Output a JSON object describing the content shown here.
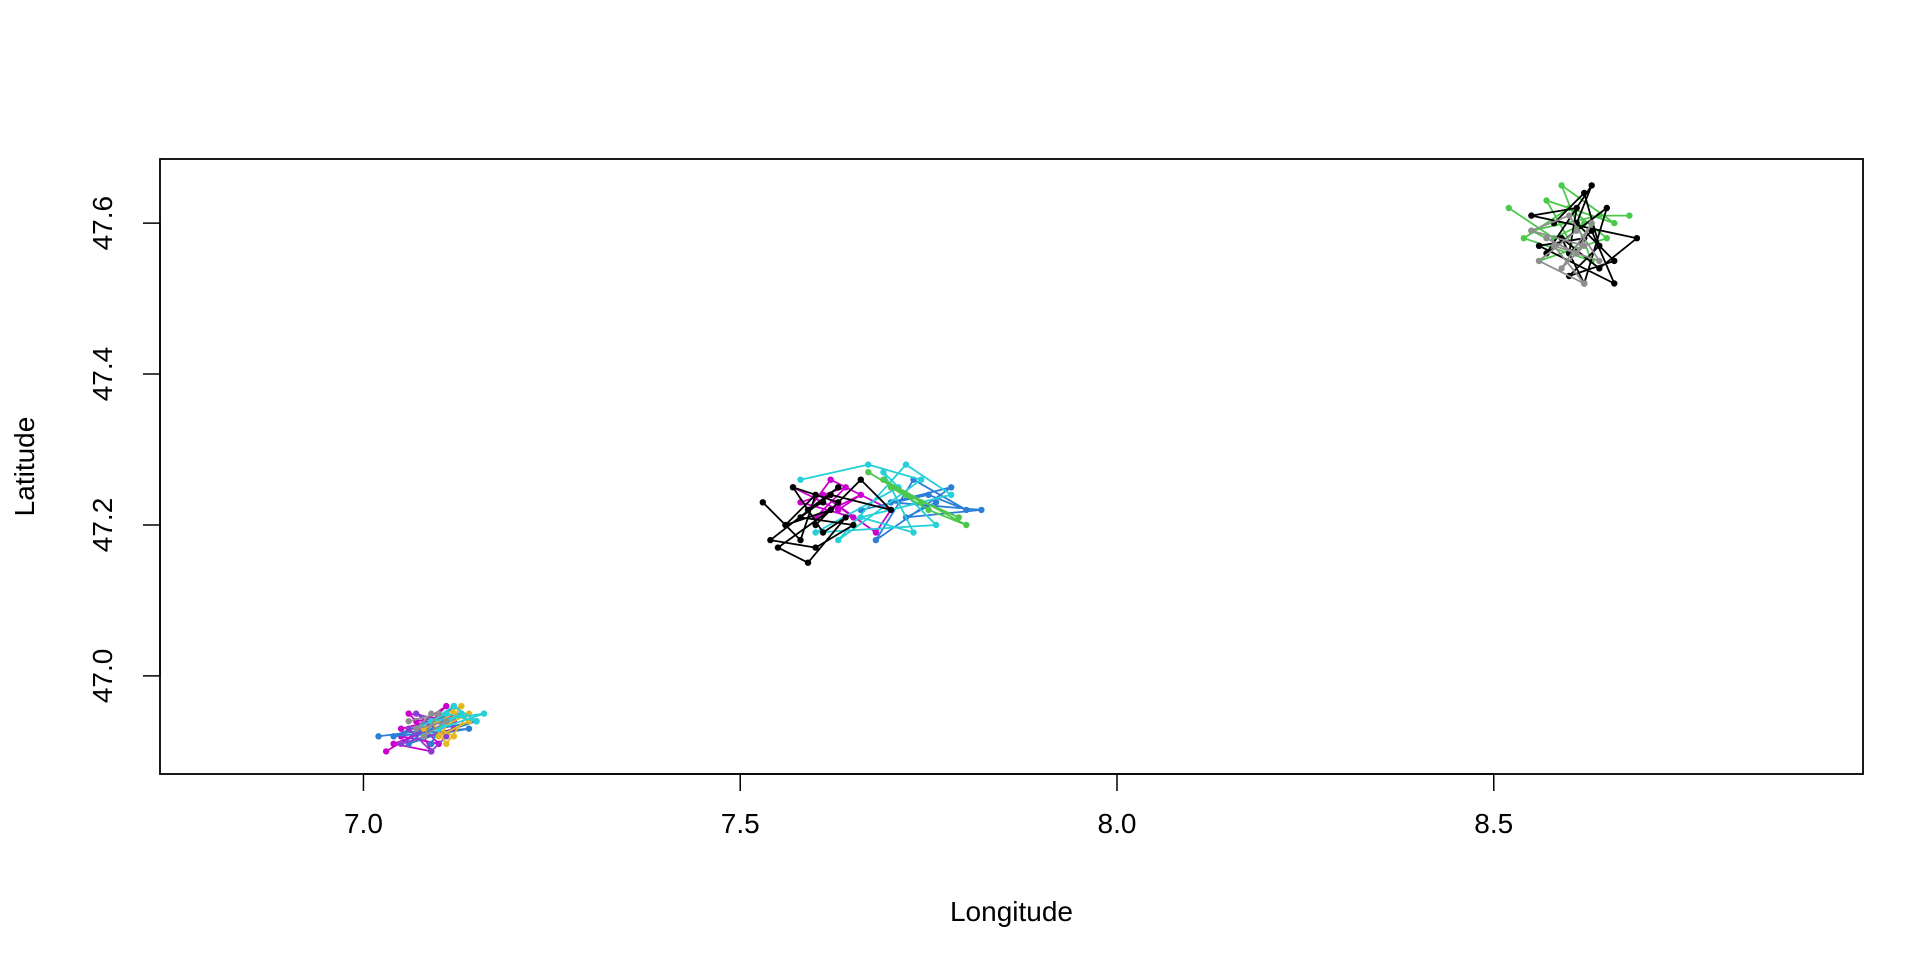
{
  "chart_data": {
    "type": "line",
    "xlabel": "Longitude",
    "ylabel": "Latitude",
    "xlim": [
      6.73,
      8.99
    ],
    "ylim": [
      46.87,
      47.685
    ],
    "xticks": [
      7.0,
      7.5,
      8.0,
      8.5
    ],
    "xtick_labels": [
      "7.0",
      "7.5",
      "8.0",
      "8.5"
    ],
    "yticks": [
      47.0,
      47.2,
      47.4,
      47.6
    ],
    "ytick_labels": [
      "47.0",
      "47.2",
      "47.4",
      "47.6"
    ],
    "grid": false,
    "markers": "points",
    "series": [
      {
        "color": "#cc00cc",
        "points": [
          [
            7.03,
            46.9
          ],
          [
            7.08,
            46.93
          ],
          [
            7.11,
            46.96
          ],
          [
            7.05,
            46.92
          ],
          [
            7.1,
            46.91
          ],
          [
            7.06,
            46.95
          ],
          [
            7.12,
            46.94
          ],
          [
            7.04,
            46.91
          ],
          [
            7.09,
            46.9
          ],
          [
            7.07,
            46.94
          ],
          [
            7.13,
            46.95
          ],
          [
            7.05,
            46.93
          ]
        ]
      },
      {
        "color": "#2b7fd6",
        "points": [
          [
            7.02,
            46.92
          ],
          [
            7.1,
            46.93
          ],
          [
            7.15,
            46.94
          ],
          [
            7.06,
            46.91
          ],
          [
            7.12,
            46.96
          ],
          [
            7.08,
            46.92
          ],
          [
            7.14,
            46.93
          ],
          [
            7.04,
            46.92
          ],
          [
            7.11,
            46.95
          ],
          [
            7.09,
            46.91
          ]
        ]
      },
      {
        "color": "#8b3ed1",
        "points": [
          [
            7.06,
            46.93
          ],
          [
            7.09,
            46.9
          ],
          [
            7.11,
            46.92
          ],
          [
            7.07,
            46.95
          ],
          [
            7.1,
            46.94
          ],
          [
            7.05,
            46.91
          ],
          [
            7.12,
            46.93
          ]
        ]
      },
      {
        "color": "#e6b820",
        "points": [
          [
            7.08,
            46.93
          ],
          [
            7.12,
            46.95
          ],
          [
            7.14,
            46.94
          ],
          [
            7.1,
            46.92
          ],
          [
            7.13,
            46.96
          ],
          [
            7.09,
            46.94
          ],
          [
            7.11,
            46.91
          ],
          [
            7.14,
            46.95
          ],
          [
            7.1,
            46.93
          ],
          [
            7.12,
            46.92
          ]
        ]
      },
      {
        "color": "#25d0d8",
        "points": [
          [
            7.07,
            46.93
          ],
          [
            7.11,
            46.95
          ],
          [
            7.15,
            46.94
          ],
          [
            7.12,
            46.96
          ],
          [
            7.09,
            46.94
          ],
          [
            7.16,
            46.95
          ],
          [
            7.1,
            46.93
          ],
          [
            7.13,
            46.95
          ],
          [
            7.08,
            46.92
          ]
        ]
      },
      {
        "color": "#8f8f8f",
        "points": [
          [
            7.06,
            46.94
          ],
          [
            7.1,
            46.95
          ],
          [
            7.08,
            46.92
          ],
          [
            7.11,
            46.94
          ],
          [
            7.07,
            46.93
          ],
          [
            7.09,
            46.95
          ]
        ]
      },
      {
        "color": "#cc00cc",
        "points": [
          [
            7.57,
            47.25
          ],
          [
            7.63,
            47.22
          ],
          [
            7.66,
            47.24
          ],
          [
            7.6,
            47.21
          ],
          [
            7.64,
            47.25
          ],
          [
            7.58,
            47.23
          ],
          [
            7.65,
            47.21
          ],
          [
            7.61,
            47.24
          ],
          [
            7.68,
            47.19
          ],
          [
            7.7,
            47.22
          ],
          [
            7.62,
            47.26
          ],
          [
            7.59,
            47.22
          ]
        ]
      },
      {
        "color": "#2b7fd6",
        "points": [
          [
            7.66,
            47.22
          ],
          [
            7.75,
            47.24
          ],
          [
            7.8,
            47.22
          ],
          [
            7.73,
            47.26
          ],
          [
            7.68,
            47.18
          ],
          [
            7.78,
            47.25
          ],
          [
            7.7,
            47.23
          ],
          [
            7.82,
            47.22
          ],
          [
            7.72,
            47.21
          ],
          [
            7.76,
            47.23
          ]
        ]
      },
      {
        "color": "#25d0d8",
        "points": [
          [
            7.58,
            47.26
          ],
          [
            7.67,
            47.28
          ],
          [
            7.74,
            47.26
          ],
          [
            7.63,
            47.18
          ],
          [
            7.72,
            47.28
          ],
          [
            7.78,
            47.24
          ],
          [
            7.66,
            47.21
          ],
          [
            7.73,
            47.19
          ],
          [
            7.69,
            47.27
          ],
          [
            7.76,
            47.2
          ],
          [
            7.6,
            47.19
          ],
          [
            7.71,
            47.25
          ]
        ]
      },
      {
        "color": "#4cc94c",
        "points": [
          [
            7.67,
            47.27
          ],
          [
            7.72,
            47.24
          ],
          [
            7.79,
            47.21
          ],
          [
            7.7,
            47.25
          ],
          [
            7.75,
            47.22
          ],
          [
            7.8,
            47.2
          ],
          [
            7.69,
            47.26
          ],
          [
            7.74,
            47.23
          ]
        ]
      },
      {
        "color": "#000000",
        "points": [
          [
            7.53,
            47.23
          ],
          [
            7.58,
            47.18
          ],
          [
            7.6,
            47.24
          ],
          [
            7.56,
            47.2
          ],
          [
            7.62,
            47.22
          ],
          [
            7.55,
            47.17
          ],
          [
            7.59,
            47.15
          ],
          [
            7.64,
            47.21
          ],
          [
            7.61,
            47.19
          ],
          [
            7.57,
            47.25
          ],
          [
            7.63,
            47.23
          ],
          [
            7.6,
            47.2
          ],
          [
            7.66,
            47.26
          ],
          [
            7.7,
            47.22
          ],
          [
            7.62,
            47.24
          ],
          [
            7.58,
            47.21
          ],
          [
            7.65,
            47.2
          ],
          [
            7.6,
            47.17
          ],
          [
            7.54,
            47.18
          ],
          [
            7.63,
            47.25
          ],
          [
            7.59,
            47.22
          ],
          [
            7.61,
            47.23
          ]
        ]
      },
      {
        "color": "#4cc94c",
        "points": [
          [
            8.52,
            47.62
          ],
          [
            8.58,
            47.58
          ],
          [
            8.62,
            47.6
          ],
          [
            8.56,
            47.55
          ],
          [
            8.65,
            47.58
          ],
          [
            8.6,
            47.62
          ],
          [
            8.54,
            47.58
          ],
          [
            8.63,
            47.55
          ],
          [
            8.59,
            47.65
          ],
          [
            8.66,
            47.6
          ],
          [
            8.57,
            47.63
          ],
          [
            8.61,
            47.56
          ],
          [
            8.55,
            47.59
          ],
          [
            8.64,
            47.61
          ],
          [
            8.68,
            47.61
          ]
        ]
      },
      {
        "color": "#000000",
        "points": [
          [
            8.58,
            47.6
          ],
          [
            8.62,
            47.64
          ],
          [
            8.64,
            47.57
          ],
          [
            8.6,
            47.53
          ],
          [
            8.66,
            47.55
          ],
          [
            8.61,
            47.6
          ],
          [
            8.63,
            47.65
          ],
          [
            8.57,
            47.56
          ],
          [
            8.65,
            47.62
          ],
          [
            8.62,
            47.52
          ],
          [
            8.59,
            47.58
          ],
          [
            8.64,
            47.54
          ],
          [
            8.69,
            47.58
          ],
          [
            8.55,
            47.61
          ],
          [
            8.61,
            47.62
          ],
          [
            8.6,
            47.56
          ],
          [
            8.63,
            47.59
          ],
          [
            8.66,
            47.52
          ],
          [
            8.56,
            47.57
          ],
          [
            8.62,
            47.58
          ]
        ]
      },
      {
        "color": "#8f8f8f",
        "points": [
          [
            8.57,
            47.58
          ],
          [
            8.61,
            47.56
          ],
          [
            8.63,
            47.6
          ],
          [
            8.59,
            47.54
          ],
          [
            8.62,
            47.57
          ],
          [
            8.55,
            47.59
          ],
          [
            8.6,
            47.61
          ],
          [
            8.64,
            47.55
          ],
          [
            8.58,
            47.57
          ],
          [
            8.62,
            47.52
          ],
          [
            8.56,
            47.55
          ],
          [
            8.61,
            47.59
          ]
        ]
      }
    ]
  }
}
